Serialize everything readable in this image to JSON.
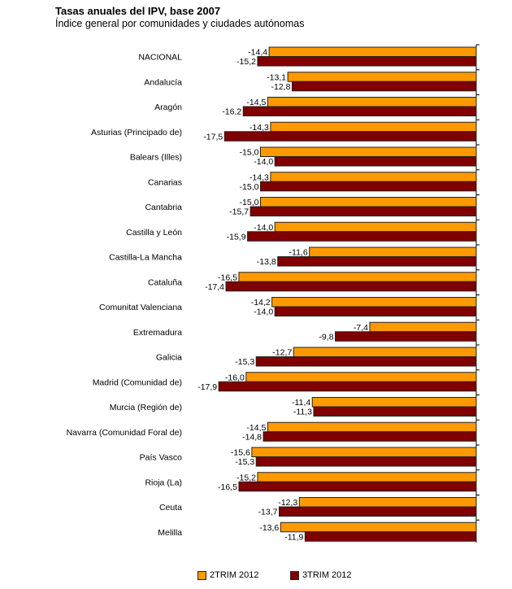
{
  "chart_data": {
    "type": "bar",
    "orientation": "horizontal",
    "title": "Tasas anuales del IPV, base 2007",
    "subtitle": "Índice general por comunidades y ciudades autónomas",
    "categories": [
      "NACIONAL",
      "Andalucía",
      "Aragón",
      "Asturias (Principado de)",
      "Balears (Illes)",
      "Canarias",
      "Cantabria",
      "Castilla y León",
      "Castilla-La Mancha",
      "Cataluña",
      "Comunitat Valenciana",
      "Extremadura",
      "Galicia",
      "Madrid (Comunidad de)",
      "Murcia (Región de)",
      "Navarra (Comunidad Foral de)",
      "País Vasco",
      "Rioja (La)",
      "Ceuta",
      "Melilla"
    ],
    "series": [
      {
        "name": "2TRIM 2012",
        "color": "#FF9900",
        "values": [
          -14.4,
          -13.1,
          -14.5,
          -14.3,
          -15.0,
          -14.3,
          -15.0,
          -14.0,
          -11.6,
          -16.5,
          -14.2,
          -7.4,
          -12.7,
          -16.0,
          -11.4,
          -14.5,
          -15.6,
          -15.2,
          -12.3,
          -13.6
        ]
      },
      {
        "name": "3TRIM 2012",
        "color": "#800000",
        "values": [
          -15.2,
          -12.8,
          -16.2,
          -17.5,
          -14.0,
          -15.0,
          -15.7,
          -15.9,
          -13.8,
          -17.4,
          -14.0,
          -9.8,
          -15.3,
          -17.9,
          -11.3,
          -14.8,
          -15.3,
          -16.5,
          -13.7,
          -11.9
        ]
      }
    ],
    "xlim": [
      -17.9,
      0
    ],
    "data_labels": true,
    "decimal_separator": ",",
    "grid": false,
    "legend_position": "bottom"
  }
}
